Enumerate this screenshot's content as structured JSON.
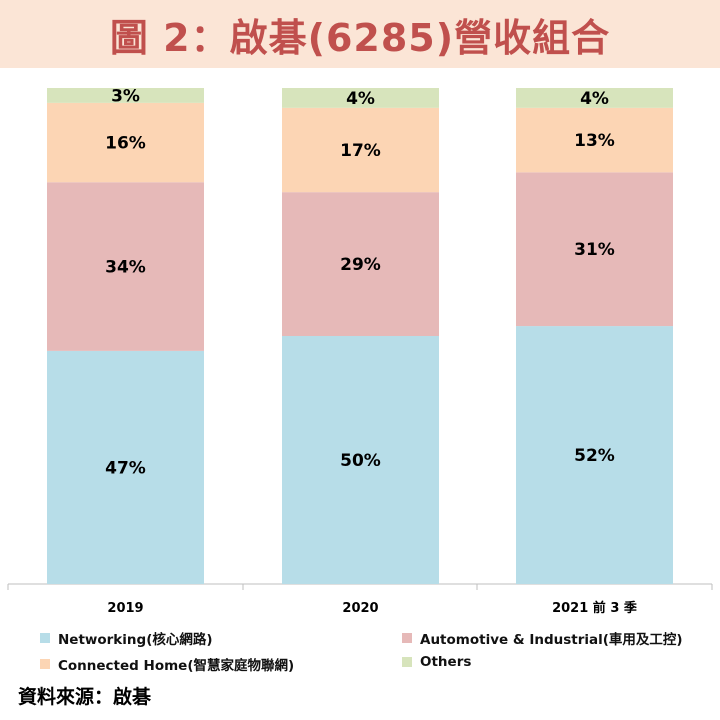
{
  "header": {
    "title": "圖 2：啟碁(6285)營收組合"
  },
  "footer": {
    "source": "資料來源：啟碁"
  },
  "chart_data": {
    "type": "bar",
    "stacked": true,
    "percent": true,
    "title": "圖 2：啟碁(6285)營收組合",
    "categories": [
      "2019",
      "2020",
      "2021 前 3 季"
    ],
    "ylim": [
      0,
      100
    ],
    "grid": false,
    "legend_position": "bottom",
    "series": [
      {
        "name": "Networking(核心網路)",
        "color": "#b7dde8",
        "values": [
          47,
          50,
          52
        ]
      },
      {
        "name": "Automotive & Industrial(車用及工控)",
        "color": "#e6b9b8",
        "values": [
          34,
          29,
          31
        ]
      },
      {
        "name": "Connected Home(智慧家庭物聯網)",
        "color": "#fcd5b4",
        "values": [
          16,
          17,
          13
        ]
      },
      {
        "name": "Others",
        "color": "#d7e4bc",
        "values": [
          3,
          4,
          4
        ]
      }
    ]
  }
}
